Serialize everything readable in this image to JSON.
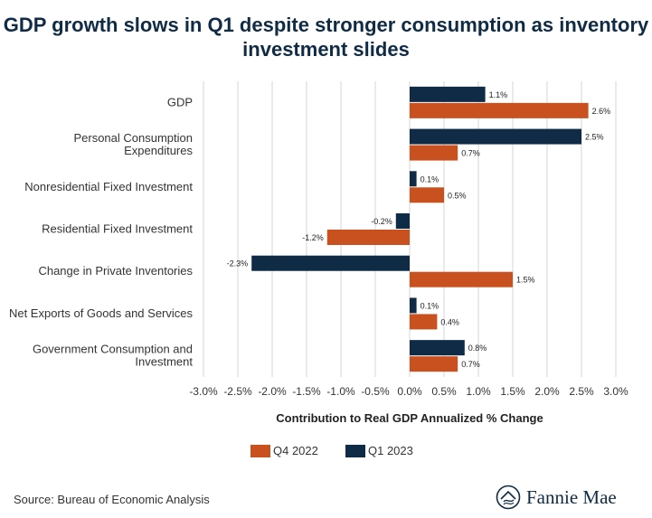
{
  "title_line1": "GDP growth slows in Q1 despite stronger consumption as inventory",
  "title_line2": "investment slides",
  "source": "Source: Bureau of Economic Analysis",
  "logo_text": "Fannie Mae",
  "colors": {
    "q4_2022": "#c8511f",
    "q1_2023": "#0f2b45",
    "grid": "#d4d4d4",
    "title": "#0f2b45"
  },
  "chart_data": {
    "type": "bar",
    "orientation": "horizontal",
    "categories": [
      [
        "GDP"
      ],
      [
        "Personal Consumption",
        "Expenditures"
      ],
      [
        "Nonresidential Fixed Investment"
      ],
      [
        "Residential Fixed Investment"
      ],
      [
        "Change in Private Inventories"
      ],
      [
        "Net Exports of Goods and Services"
      ],
      [
        "Government Consumption and",
        "Investment"
      ]
    ],
    "series": [
      {
        "name": "Q1 2023",
        "color": "#0f2b45",
        "values": [
          1.1,
          2.5,
          0.1,
          -0.2,
          -2.3,
          0.1,
          0.8
        ],
        "labels": [
          "1.1%",
          "2.5%",
          "0.1%",
          "-0.2%",
          "-2.3%",
          "0.1%",
          "0.8%"
        ]
      },
      {
        "name": "Q4 2022",
        "color": "#c8511f",
        "values": [
          2.6,
          0.7,
          0.5,
          -1.2,
          1.5,
          0.4,
          0.7
        ],
        "labels": [
          "2.6%",
          "0.7%",
          "0.5%",
          "-1.2%",
          "1.5%",
          "0.4%",
          "0.7%"
        ]
      }
    ],
    "xlabel": "Contribution to Real GDP Annualized % Change",
    "xlim": [
      -3.0,
      3.0
    ],
    "xticks": [
      -3.0,
      -2.5,
      -2.0,
      -1.5,
      -1.0,
      -0.5,
      0.0,
      0.5,
      1.0,
      1.5,
      2.0,
      2.5,
      3.0
    ],
    "xtick_labels": [
      "-3.0%",
      "-2.5%",
      "-2.0%",
      "-1.5%",
      "-1.0%",
      "-0.5%",
      "0.0%",
      "0.5%",
      "1.0%",
      "1.5%",
      "2.0%",
      "2.5%",
      "3.0%"
    ],
    "legend": [
      {
        "name": "Q4 2022",
        "color": "#c8511f"
      },
      {
        "name": "Q1 2023",
        "color": "#0f2b45"
      }
    ],
    "legend_position": "bottom",
    "grid": "vertical"
  }
}
